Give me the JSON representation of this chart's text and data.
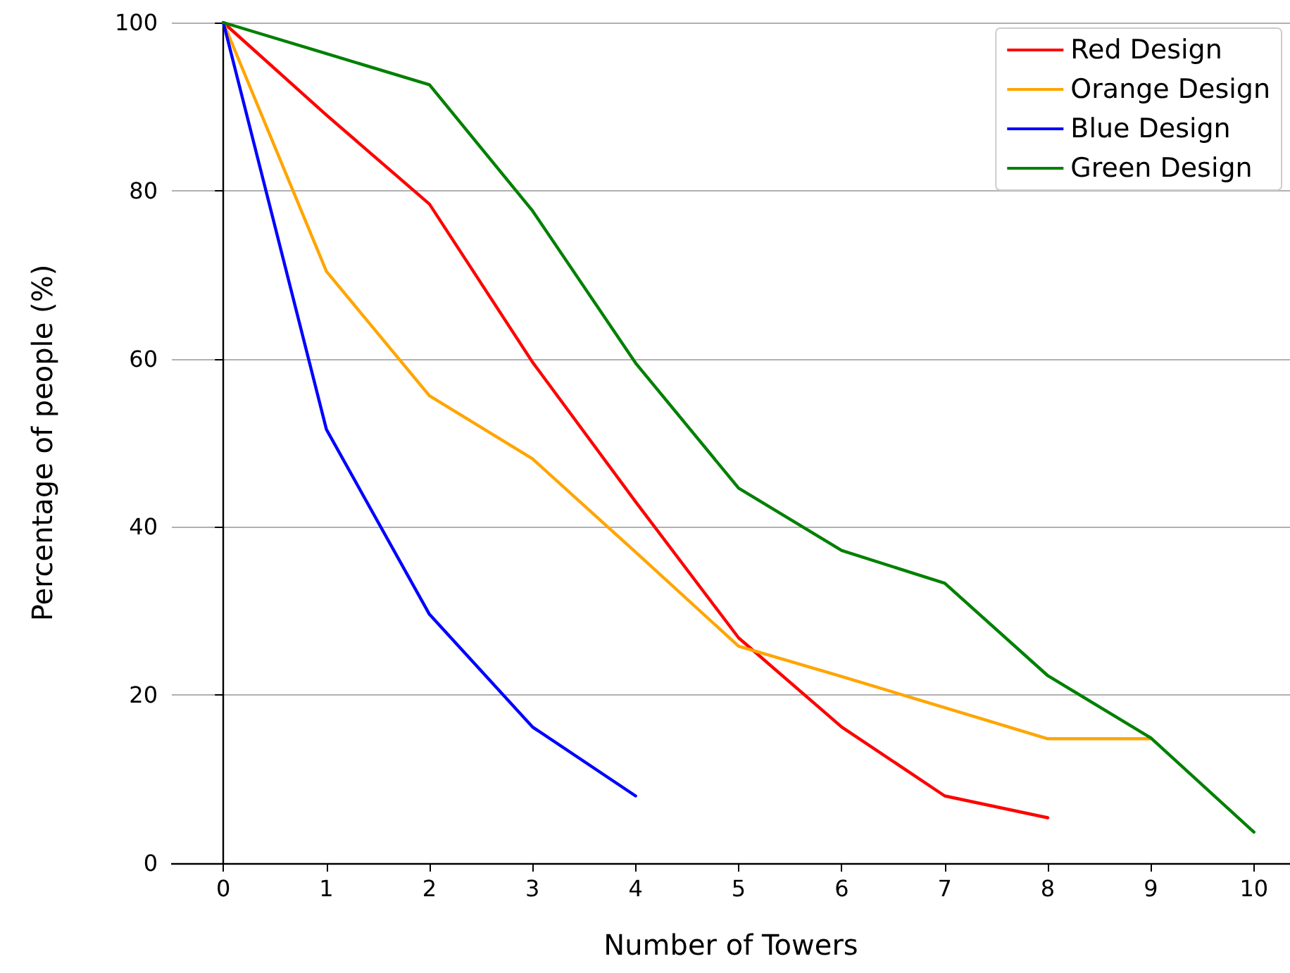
{
  "chart_data": {
    "type": "line",
    "xlabel": "Number of Towers",
    "ylabel": "Percentage of people (%)",
    "x": [
      0,
      1,
      2,
      3,
      4,
      5,
      6,
      7,
      8,
      9,
      10
    ],
    "series": [
      {
        "name": "Red Design",
        "color": "#ff0000",
        "values": [
          100,
          89,
          78.4,
          59.6,
          43,
          26.8,
          16.2,
          8,
          5.4,
          null,
          null
        ]
      },
      {
        "name": "Orange Design",
        "color": "#ffa500",
        "values": [
          100,
          70.4,
          55.6,
          48.1,
          37,
          25.8,
          22.2,
          18.5,
          14.8,
          14.8,
          null
        ]
      },
      {
        "name": "Blue Design",
        "color": "#0000ff",
        "values": [
          100,
          51.6,
          29.6,
          16.2,
          8,
          null,
          null,
          null,
          null,
          null,
          null
        ]
      },
      {
        "name": "Green Design",
        "color": "#008000",
        "values": [
          100,
          96.3,
          92.6,
          77.6,
          59.5,
          44.6,
          37.2,
          33.3,
          22.3,
          14.9,
          3.7
        ]
      }
    ],
    "xlim": [
      -0.5,
      10.35
    ],
    "xticks": [
      0,
      1,
      2,
      3,
      4,
      5,
      6,
      7,
      8,
      9,
      10
    ],
    "ylim": [
      0,
      100
    ],
    "yticks": [
      0,
      20,
      40,
      60,
      80,
      100
    ],
    "grid": "y",
    "legend": "top right",
    "marker": "none",
    "line_style": "solid"
  }
}
